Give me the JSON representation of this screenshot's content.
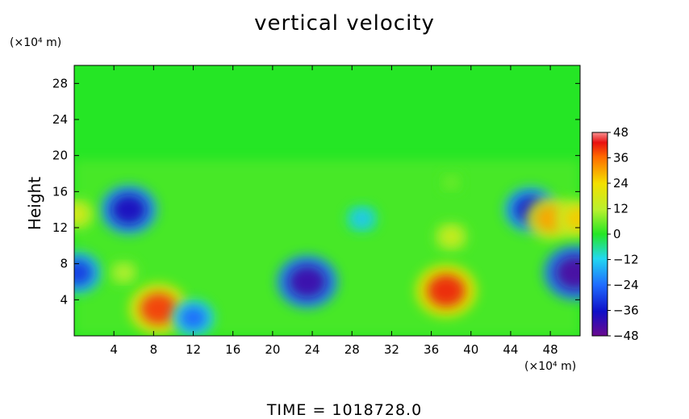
{
  "chart_data": {
    "type": "heatmap",
    "title": "vertical velocity",
    "ylabel": "Height",
    "xunit": "(×10⁴ m)",
    "yunit": "(×10⁴ m)",
    "footer": "TIME = 1018728.0",
    "xlim": [
      0,
      51
    ],
    "ylim": [
      0,
      30
    ],
    "xticks": [
      4,
      8,
      12,
      16,
      20,
      24,
      28,
      32,
      36,
      40,
      44,
      48
    ],
    "yticks": [
      4,
      8,
      12,
      16,
      20,
      24,
      28
    ],
    "colorbar": {
      "min": -48,
      "max": 48,
      "ticks": [
        48,
        36,
        24,
        12,
        0,
        -12,
        -24,
        -36,
        -48
      ],
      "tick_labels": [
        "48",
        "36",
        "24",
        "12",
        "0",
        "−12",
        "−24",
        "−36",
        "−48"
      ]
    },
    "features": [
      {
        "x": 37.5,
        "y": 5,
        "value": 42
      },
      {
        "x": 8.5,
        "y": 3,
        "value": 40
      },
      {
        "x": 23.5,
        "y": 6,
        "value": -42
      },
      {
        "x": 50.5,
        "y": 7,
        "value": -44
      },
      {
        "x": 5.5,
        "y": 14,
        "value": -38
      },
      {
        "x": 46,
        "y": 14,
        "value": -34
      },
      {
        "x": 12,
        "y": 2,
        "value": -24
      },
      {
        "x": 0.3,
        "y": 7,
        "value": -30
      },
      {
        "x": 48,
        "y": 13,
        "value": 30
      },
      {
        "x": 50.8,
        "y": 13,
        "value": 26
      },
      {
        "x": 0.2,
        "y": 13.5,
        "value": 18
      },
      {
        "x": 38,
        "y": 11,
        "value": 16
      },
      {
        "x": 5,
        "y": 7,
        "value": 12
      },
      {
        "x": 38,
        "y": 17,
        "value": 6
      },
      {
        "x": 29,
        "y": 13,
        "value": -14
      }
    ]
  }
}
